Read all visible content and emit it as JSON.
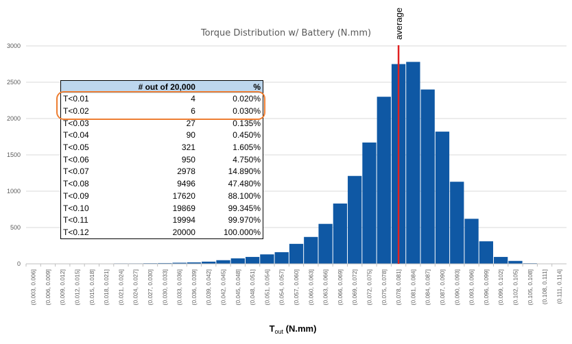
{
  "chart_data": {
    "type": "bar",
    "title": "Torque Distribution w/ Battery (N.mm)",
    "xlabel_main": "T",
    "xlabel_sub": "out",
    "xlabel_rest": " (N.mm)",
    "ylabel": "",
    "ylim": [
      0,
      3000
    ],
    "yticks": [
      "0",
      "500",
      "1000",
      "1500",
      "2000",
      "2500",
      "3000"
    ],
    "grid": true,
    "bar_color": "#0f58a4",
    "categories": [
      "(0.003, 0.006]",
      "(0.006, 0.009]",
      "(0.009, 0.012]",
      "(0.012, 0.015]",
      "(0.015, 0.018]",
      "(0.018, 0.021]",
      "(0.021, 0.024]",
      "(0.024, 0.027]",
      "(0.027, 0.030]",
      "(0.030, 0.033]",
      "(0.033, 0.036]",
      "(0.036, 0.039]",
      "(0.039, 0.042]",
      "(0.042, 0.045]",
      "(0.045, 0.048]",
      "(0.048, 0.051]",
      "(0.051, 0.054]",
      "(0.054, 0.057]",
      "(0.057, 0.060]",
      "(0.060, 0.063]",
      "(0.063, 0.066]",
      "(0.066, 0.069]",
      "(0.069, 0.072]",
      "(0.072, 0.075]",
      "(0.075, 0.078]",
      "(0.078, 0.081]",
      "(0.081, 0.084]",
      "(0.084, 0.087]",
      "(0.087, 0.090]",
      "(0.090, 0.093]",
      "(0.093, 0.096]",
      "(0.096, 0.099]",
      "(0.099, 0.102]",
      "(0.102, 0.105]",
      "(0.105, 0.108]",
      "(0.108, 0.111]",
      "(0.111, 0.114]"
    ],
    "values": [
      1,
      1,
      2,
      2,
      2,
      4,
      6,
      6,
      8,
      10,
      15,
      20,
      30,
      50,
      75,
      95,
      130,
      160,
      275,
      370,
      550,
      830,
      1210,
      1670,
      2300,
      2750,
      2780,
      2400,
      1820,
      1130,
      620,
      310,
      95,
      40,
      8,
      3,
      2
    ],
    "average": {
      "label": "average",
      "category_index": 25,
      "color": "#e02020"
    }
  },
  "table": {
    "headers": [
      "",
      "# out of 20,000",
      "%"
    ],
    "rows": [
      [
        "T<0.01",
        "4",
        "0.020%"
      ],
      [
        "T<0.02",
        "6",
        "0.030%"
      ],
      [
        "T<0.03",
        "27",
        "0.135%"
      ],
      [
        "T<0.04",
        "90",
        "0.450%"
      ],
      [
        "T<0.05",
        "321",
        "1.605%"
      ],
      [
        "T<0.06",
        "950",
        "4.750%"
      ],
      [
        "T<0.07",
        "2978",
        "14.890%"
      ],
      [
        "T<0.08",
        "9496",
        "47.480%"
      ],
      [
        "T<0.09",
        "17620",
        "88.100%"
      ],
      [
        "T<0.10",
        "19869",
        "99.345%"
      ],
      [
        "T<0.11",
        "19994",
        "99.970%"
      ],
      [
        "T<0.12",
        "20000",
        "100.000%"
      ]
    ],
    "highlight_color": "#ed7d31"
  }
}
